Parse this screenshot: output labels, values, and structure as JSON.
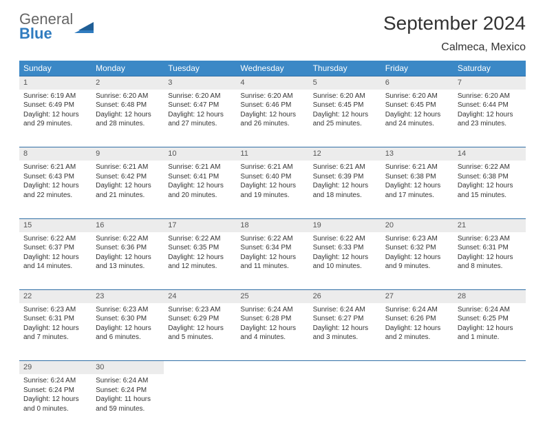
{
  "brand": {
    "line1": "General",
    "line2": "Blue"
  },
  "title": "September 2024",
  "location": "Calmeca, Mexico",
  "colors": {
    "header_bg": "#3b88c6",
    "header_text": "#ffffff",
    "daynum_bg": "#ececec",
    "rule": "#2f6ea5",
    "logo_gray": "#666666",
    "logo_blue": "#2f7bbf"
  },
  "dayHeaders": [
    "Sunday",
    "Monday",
    "Tuesday",
    "Wednesday",
    "Thursday",
    "Friday",
    "Saturday"
  ],
  "weeks": [
    [
      {
        "n": "1",
        "sr": "Sunrise: 6:19 AM",
        "ss": "Sunset: 6:49 PM",
        "d1": "Daylight: 12 hours",
        "d2": "and 29 minutes."
      },
      {
        "n": "2",
        "sr": "Sunrise: 6:20 AM",
        "ss": "Sunset: 6:48 PM",
        "d1": "Daylight: 12 hours",
        "d2": "and 28 minutes."
      },
      {
        "n": "3",
        "sr": "Sunrise: 6:20 AM",
        "ss": "Sunset: 6:47 PM",
        "d1": "Daylight: 12 hours",
        "d2": "and 27 minutes."
      },
      {
        "n": "4",
        "sr": "Sunrise: 6:20 AM",
        "ss": "Sunset: 6:46 PM",
        "d1": "Daylight: 12 hours",
        "d2": "and 26 minutes."
      },
      {
        "n": "5",
        "sr": "Sunrise: 6:20 AM",
        "ss": "Sunset: 6:45 PM",
        "d1": "Daylight: 12 hours",
        "d2": "and 25 minutes."
      },
      {
        "n": "6",
        "sr": "Sunrise: 6:20 AM",
        "ss": "Sunset: 6:45 PM",
        "d1": "Daylight: 12 hours",
        "d2": "and 24 minutes."
      },
      {
        "n": "7",
        "sr": "Sunrise: 6:20 AM",
        "ss": "Sunset: 6:44 PM",
        "d1": "Daylight: 12 hours",
        "d2": "and 23 minutes."
      }
    ],
    [
      {
        "n": "8",
        "sr": "Sunrise: 6:21 AM",
        "ss": "Sunset: 6:43 PM",
        "d1": "Daylight: 12 hours",
        "d2": "and 22 minutes."
      },
      {
        "n": "9",
        "sr": "Sunrise: 6:21 AM",
        "ss": "Sunset: 6:42 PM",
        "d1": "Daylight: 12 hours",
        "d2": "and 21 minutes."
      },
      {
        "n": "10",
        "sr": "Sunrise: 6:21 AM",
        "ss": "Sunset: 6:41 PM",
        "d1": "Daylight: 12 hours",
        "d2": "and 20 minutes."
      },
      {
        "n": "11",
        "sr": "Sunrise: 6:21 AM",
        "ss": "Sunset: 6:40 PM",
        "d1": "Daylight: 12 hours",
        "d2": "and 19 minutes."
      },
      {
        "n": "12",
        "sr": "Sunrise: 6:21 AM",
        "ss": "Sunset: 6:39 PM",
        "d1": "Daylight: 12 hours",
        "d2": "and 18 minutes."
      },
      {
        "n": "13",
        "sr": "Sunrise: 6:21 AM",
        "ss": "Sunset: 6:38 PM",
        "d1": "Daylight: 12 hours",
        "d2": "and 17 minutes."
      },
      {
        "n": "14",
        "sr": "Sunrise: 6:22 AM",
        "ss": "Sunset: 6:38 PM",
        "d1": "Daylight: 12 hours",
        "d2": "and 15 minutes."
      }
    ],
    [
      {
        "n": "15",
        "sr": "Sunrise: 6:22 AM",
        "ss": "Sunset: 6:37 PM",
        "d1": "Daylight: 12 hours",
        "d2": "and 14 minutes."
      },
      {
        "n": "16",
        "sr": "Sunrise: 6:22 AM",
        "ss": "Sunset: 6:36 PM",
        "d1": "Daylight: 12 hours",
        "d2": "and 13 minutes."
      },
      {
        "n": "17",
        "sr": "Sunrise: 6:22 AM",
        "ss": "Sunset: 6:35 PM",
        "d1": "Daylight: 12 hours",
        "d2": "and 12 minutes."
      },
      {
        "n": "18",
        "sr": "Sunrise: 6:22 AM",
        "ss": "Sunset: 6:34 PM",
        "d1": "Daylight: 12 hours",
        "d2": "and 11 minutes."
      },
      {
        "n": "19",
        "sr": "Sunrise: 6:22 AM",
        "ss": "Sunset: 6:33 PM",
        "d1": "Daylight: 12 hours",
        "d2": "and 10 minutes."
      },
      {
        "n": "20",
        "sr": "Sunrise: 6:23 AM",
        "ss": "Sunset: 6:32 PM",
        "d1": "Daylight: 12 hours",
        "d2": "and 9 minutes."
      },
      {
        "n": "21",
        "sr": "Sunrise: 6:23 AM",
        "ss": "Sunset: 6:31 PM",
        "d1": "Daylight: 12 hours",
        "d2": "and 8 minutes."
      }
    ],
    [
      {
        "n": "22",
        "sr": "Sunrise: 6:23 AM",
        "ss": "Sunset: 6:31 PM",
        "d1": "Daylight: 12 hours",
        "d2": "and 7 minutes."
      },
      {
        "n": "23",
        "sr": "Sunrise: 6:23 AM",
        "ss": "Sunset: 6:30 PM",
        "d1": "Daylight: 12 hours",
        "d2": "and 6 minutes."
      },
      {
        "n": "24",
        "sr": "Sunrise: 6:23 AM",
        "ss": "Sunset: 6:29 PM",
        "d1": "Daylight: 12 hours",
        "d2": "and 5 minutes."
      },
      {
        "n": "25",
        "sr": "Sunrise: 6:24 AM",
        "ss": "Sunset: 6:28 PM",
        "d1": "Daylight: 12 hours",
        "d2": "and 4 minutes."
      },
      {
        "n": "26",
        "sr": "Sunrise: 6:24 AM",
        "ss": "Sunset: 6:27 PM",
        "d1": "Daylight: 12 hours",
        "d2": "and 3 minutes."
      },
      {
        "n": "27",
        "sr": "Sunrise: 6:24 AM",
        "ss": "Sunset: 6:26 PM",
        "d1": "Daylight: 12 hours",
        "d2": "and 2 minutes."
      },
      {
        "n": "28",
        "sr": "Sunrise: 6:24 AM",
        "ss": "Sunset: 6:25 PM",
        "d1": "Daylight: 12 hours",
        "d2": "and 1 minute."
      }
    ],
    [
      {
        "n": "29",
        "sr": "Sunrise: 6:24 AM",
        "ss": "Sunset: 6:24 PM",
        "d1": "Daylight: 12 hours",
        "d2": "and 0 minutes."
      },
      {
        "n": "30",
        "sr": "Sunrise: 6:24 AM",
        "ss": "Sunset: 6:24 PM",
        "d1": "Daylight: 11 hours",
        "d2": "and 59 minutes."
      },
      null,
      null,
      null,
      null,
      null
    ]
  ]
}
